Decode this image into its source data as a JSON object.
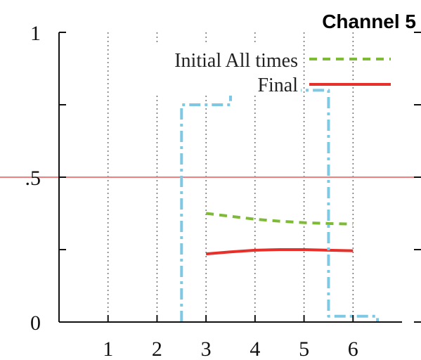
{
  "chart_data": {
    "type": "line",
    "title": "Channel 5",
    "xlim": [
      0,
      7
    ],
    "ylim": [
      0,
      1
    ],
    "x_ticks": [
      "1",
      "2",
      "3",
      "4",
      "5",
      "6"
    ],
    "y_tick_labels": [
      {
        "value": 0,
        "label": "0"
      },
      {
        "value": 0.5,
        "label": ".5"
      },
      {
        "value": 1,
        "label": "1"
      }
    ],
    "y_minor_ticks": [
      0.25,
      0.75
    ],
    "grid_x": true,
    "reference_line": {
      "y": 0.5,
      "color": "#f08080"
    },
    "legend": {
      "placement": "top-right"
    },
    "series": [
      {
        "name": "Initial All times",
        "style": "dashed",
        "color": "#7dbb34",
        "x": [
          3,
          3.5,
          4,
          4.5,
          5,
          5.5,
          6
        ],
        "y": [
          0.375,
          0.365,
          0.355,
          0.348,
          0.343,
          0.34,
          0.338
        ]
      },
      {
        "name": "Final",
        "style": "solid",
        "color": "#e8302a",
        "x": [
          3,
          3.5,
          4,
          4.5,
          5,
          5.5,
          6
        ],
        "y": [
          0.235,
          0.242,
          0.248,
          0.25,
          0.25,
          0.248,
          0.246
        ]
      },
      {
        "style": "dash-dot-step",
        "color": "#7ec8e3",
        "x": [
          2.5,
          2.5,
          3,
          3,
          3.5,
          3.5,
          4,
          4,
          4.5,
          4.5,
          5,
          5,
          5.5,
          5.5,
          6,
          6,
          6.5,
          6.5
        ],
        "y": [
          0,
          0.75,
          0.75,
          0.75,
          0.75,
          0.95,
          0.95,
          0.95,
          0.95,
          0.8,
          0.8,
          0.8,
          0.8,
          0.02,
          0.02,
          0.02,
          0.02,
          0
        ]
      }
    ]
  }
}
